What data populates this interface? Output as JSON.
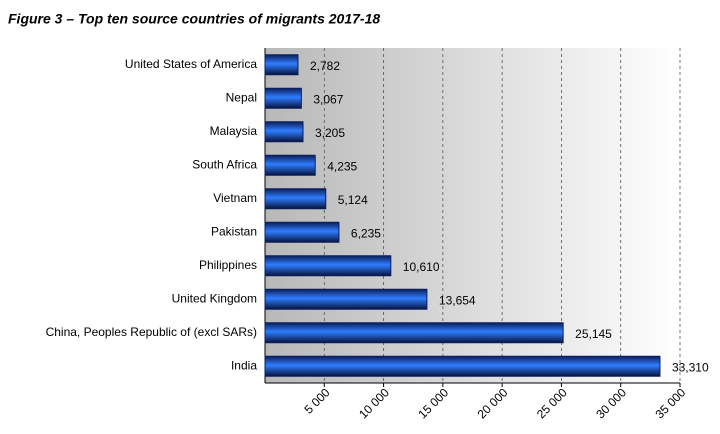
{
  "chart_data": {
    "type": "bar",
    "orientation": "horizontal",
    "title": "Figure 3 – Top ten source countries of migrants 2017-18",
    "categories": [
      "United States of America",
      "Nepal",
      "Malaysia",
      "South Africa",
      "Vietnam",
      "Pakistan",
      "Philippines",
      "United Kingdom",
      "China, Peoples Republic of (excl SARs)",
      "India"
    ],
    "values": [
      2782,
      3067,
      3205,
      4235,
      5124,
      6235,
      10610,
      13654,
      25145,
      33310
    ],
    "value_labels": [
      "2,782",
      "3,067",
      "3,205",
      "4,235",
      "5,124",
      "6,235",
      "10,610",
      "13,654",
      "25,145",
      "33,310"
    ],
    "color": "#1a5cc8",
    "xlim": [
      0,
      35000
    ],
    "xticks": [
      {
        "value": 5000,
        "label": "5 000"
      },
      {
        "value": 10000,
        "label": "10 000"
      },
      {
        "value": 15000,
        "label": "15 000"
      },
      {
        "value": 20000,
        "label": "20 000"
      },
      {
        "value": 25000,
        "label": "25 000"
      },
      {
        "value": 30000,
        "label": "30 000"
      },
      {
        "value": 35000,
        "label": "35 000"
      }
    ],
    "grid": true
  }
}
